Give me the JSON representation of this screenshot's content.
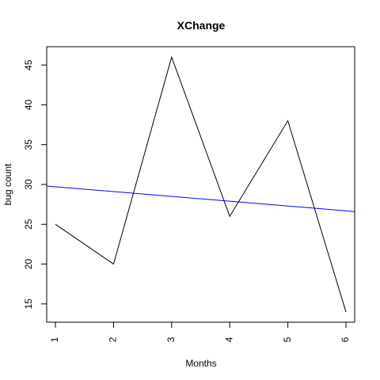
{
  "chart_data": {
    "type": "line",
    "title": "XChange",
    "xlabel": "Months",
    "ylabel": "bug count",
    "x": [
      1,
      2,
      3,
      4,
      5,
      6
    ],
    "series": [
      {
        "values": [
          25,
          20,
          46,
          26,
          38,
          14
        ],
        "color": "#000000"
      }
    ],
    "trend_line": {
      "x": [
        0.85,
        6.15
      ],
      "y": [
        29.8,
        26.6
      ],
      "color": "#0000ff"
    },
    "x_ticks": [
      1,
      2,
      3,
      4,
      5,
      6
    ],
    "y_ticks": [
      15,
      20,
      25,
      30,
      35,
      40,
      45
    ],
    "xlim": [
      0.85,
      6.15
    ],
    "ylim": [
      12.7,
      47.3
    ],
    "grid": false,
    "legend": "none"
  }
}
